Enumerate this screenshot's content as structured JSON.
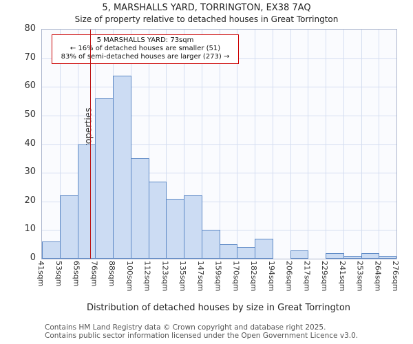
{
  "title": "5, MARSHALLS YARD, TORRINGTON, EX38 7AQ",
  "subtitle": "Size of property relative to detached houses in Great Torrington",
  "chart_data": {
    "type": "bar",
    "categories": [
      "41sqm",
      "53sqm",
      "65sqm",
      "76sqm",
      "88sqm",
      "100sqm",
      "112sqm",
      "123sqm",
      "135sqm",
      "147sqm",
      "159sqm",
      "170sqm",
      "182sqm",
      "194sqm",
      "206sqm",
      "217sqm",
      "229sqm",
      "241sqm",
      "253sqm",
      "264sqm",
      "276sqm"
    ],
    "bin_edges_sqm": [
      41,
      53,
      65,
      76,
      88,
      100,
      112,
      123,
      135,
      147,
      159,
      170,
      182,
      194,
      206,
      217,
      229,
      241,
      253,
      264,
      276
    ],
    "values": [
      6,
      22,
      40,
      56,
      64,
      35,
      27,
      21,
      22,
      10,
      5,
      4,
      7,
      0,
      3,
      0,
      2,
      1,
      2,
      1
    ],
    "title": "5, MARSHALLS YARD, TORRINGTON, EX38 7AQ",
    "xlabel": "Distribution of detached houses by size in Great Torrington",
    "ylabel": "Number of detached properties",
    "ylim": [
      0,
      80
    ],
    "ytick_step": 10,
    "grid": true,
    "legend": "none",
    "bar_fill": "#ccdcf3",
    "bar_border": "#5c88c5",
    "marker": {
      "value_sqm": 73,
      "color": "#bb1111"
    }
  },
  "annotation": {
    "line1": "5 MARSHALLS YARD: 73sqm",
    "line2": "← 16% of detached houses are smaller (51)",
    "line3": "83% of semi-detached houses are larger (273) →"
  },
  "footer": {
    "line1": "Contains HM Land Registry data © Crown copyright and database right 2025.",
    "line2": "Contains public sector information licensed under the Open Government Licence v3.0."
  }
}
